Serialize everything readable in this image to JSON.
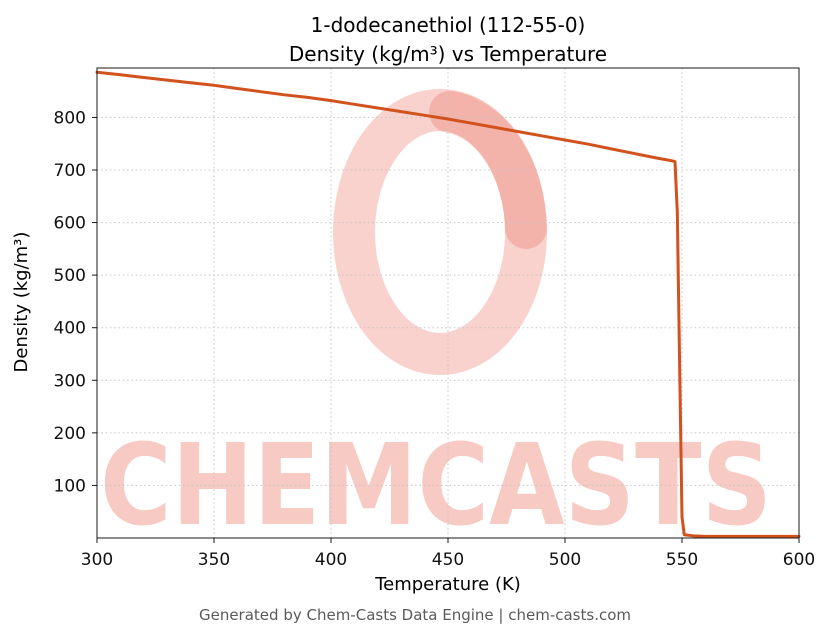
{
  "chart_data": {
    "type": "line",
    "title_line1": "1-dodecanethiol (112-55-0)",
    "title_line2": "Density (kg/m³) vs Temperature",
    "xlabel": "Temperature (K)",
    "ylabel": "Density (kg/m³)",
    "xlim": [
      300,
      600
    ],
    "ylim": [
      0,
      894
    ],
    "x_ticks": [
      300,
      350,
      400,
      450,
      500,
      550,
      600
    ],
    "y_ticks": [
      100,
      200,
      300,
      400,
      500,
      600,
      700,
      800
    ],
    "grid": true,
    "legend": false,
    "line_color": "#d2521e",
    "series": [
      {
        "name": "density",
        "points": [
          [
            300,
            886
          ],
          [
            310,
            881
          ],
          [
            320,
            876
          ],
          [
            330,
            871
          ],
          [
            340,
            866
          ],
          [
            350,
            861
          ],
          [
            360,
            855
          ],
          [
            370,
            849
          ],
          [
            380,
            843
          ],
          [
            390,
            838
          ],
          [
            400,
            832
          ],
          [
            410,
            825
          ],
          [
            420,
            818
          ],
          [
            430,
            811
          ],
          [
            440,
            804
          ],
          [
            450,
            797
          ],
          [
            460,
            789
          ],
          [
            470,
            781
          ],
          [
            480,
            773
          ],
          [
            490,
            765
          ],
          [
            500,
            757
          ],
          [
            510,
            749
          ],
          [
            520,
            740
          ],
          [
            530,
            731
          ],
          [
            540,
            722
          ],
          [
            545,
            718
          ],
          [
            547,
            716
          ],
          [
            548,
            620
          ],
          [
            549,
            320
          ],
          [
            550,
            40
          ],
          [
            551,
            6
          ],
          [
            555,
            4
          ],
          [
            560,
            3
          ],
          [
            575,
            3
          ],
          [
            590,
            3
          ],
          [
            600,
            3
          ]
        ]
      }
    ]
  },
  "watermark": {
    "text": "CHEMCASTS",
    "color": "#e8523c"
  },
  "footer": {
    "text": "Generated by Chem-Casts Data Engine | chem-casts.com"
  }
}
